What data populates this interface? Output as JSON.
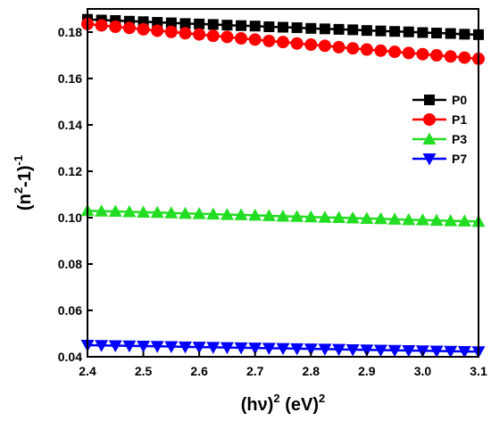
{
  "chart_data": {
    "type": "scatter",
    "xlabel": {
      "base": "(hν)",
      "sup1": "2",
      "mid": " (eV)",
      "sup2": "2"
    },
    "ylabel": {
      "base": "(n",
      "sup1": "2",
      "mid": "-1)",
      "sup2": "-1"
    },
    "xlim": [
      2.4,
      3.1
    ],
    "ylim": [
      0.04,
      0.19
    ],
    "xticks": [
      "2.4",
      "2.5",
      "2.6",
      "2.7",
      "2.8",
      "2.9",
      "3.0",
      "3.1"
    ],
    "yticks": [
      "0.04",
      "0.06",
      "0.08",
      "0.10",
      "0.12",
      "0.14",
      "0.16",
      "0.18"
    ],
    "grid": false,
    "legend_position": "right",
    "x": [
      2.4,
      2.425,
      2.45,
      2.475,
      2.5,
      2.525,
      2.55,
      2.575,
      2.6,
      2.625,
      2.65,
      2.675,
      2.7,
      2.725,
      2.75,
      2.775,
      2.8,
      2.825,
      2.85,
      2.875,
      2.9,
      2.925,
      2.95,
      2.975,
      3.0,
      3.025,
      3.05,
      3.075,
      3.1
    ],
    "series": [
      {
        "name": "P0",
        "marker": "square",
        "color": "#000000",
        "values": [
          0.1855,
          0.1852,
          0.185,
          0.1847,
          0.1845,
          0.1842,
          0.184,
          0.1837,
          0.1835,
          0.1833,
          0.183,
          0.1828,
          0.1826,
          0.1823,
          0.1821,
          0.1819,
          0.1816,
          0.1814,
          0.1812,
          0.181,
          0.1807,
          0.1805,
          0.1803,
          0.1801,
          0.1798,
          0.1796,
          0.1794,
          0.1791,
          0.1789
        ]
      },
      {
        "name": "P1",
        "marker": "circle",
        "color": "#ff0000",
        "values": [
          0.1835,
          0.1829,
          0.1823,
          0.1818,
          0.1812,
          0.1806,
          0.1801,
          0.1795,
          0.179,
          0.1784,
          0.1779,
          0.1773,
          0.1768,
          0.1762,
          0.1757,
          0.1751,
          0.1746,
          0.1741,
          0.1735,
          0.173,
          0.1725,
          0.172,
          0.1715,
          0.171,
          0.1705,
          0.17,
          0.1695,
          0.169,
          0.1685
        ]
      },
      {
        "name": "P3",
        "marker": "triangle-up",
        "color": "#22dd22",
        "values": [
          0.103,
          0.1028,
          0.1027,
          0.1025,
          0.1023,
          0.1022,
          0.102,
          0.1018,
          0.1017,
          0.1015,
          0.1013,
          0.1012,
          0.101,
          0.1008,
          0.1006,
          0.1005,
          0.1003,
          0.1001,
          0.1,
          0.0998,
          0.0996,
          0.0995,
          0.0993,
          0.0991,
          0.099,
          0.0988,
          0.0986,
          0.0985,
          0.0983
        ]
      },
      {
        "name": "P7",
        "marker": "triangle-down",
        "color": "#0000ff",
        "values": [
          0.045,
          0.0449,
          0.0448,
          0.0447,
          0.0446,
          0.0445,
          0.0444,
          0.0443,
          0.0442,
          0.0441,
          0.044,
          0.0439,
          0.0438,
          0.0437,
          0.0436,
          0.0435,
          0.0434,
          0.0433,
          0.0432,
          0.0431,
          0.043,
          0.0429,
          0.0428,
          0.0427,
          0.0426,
          0.0425,
          0.0424,
          0.0423,
          0.0422
        ]
      }
    ]
  }
}
